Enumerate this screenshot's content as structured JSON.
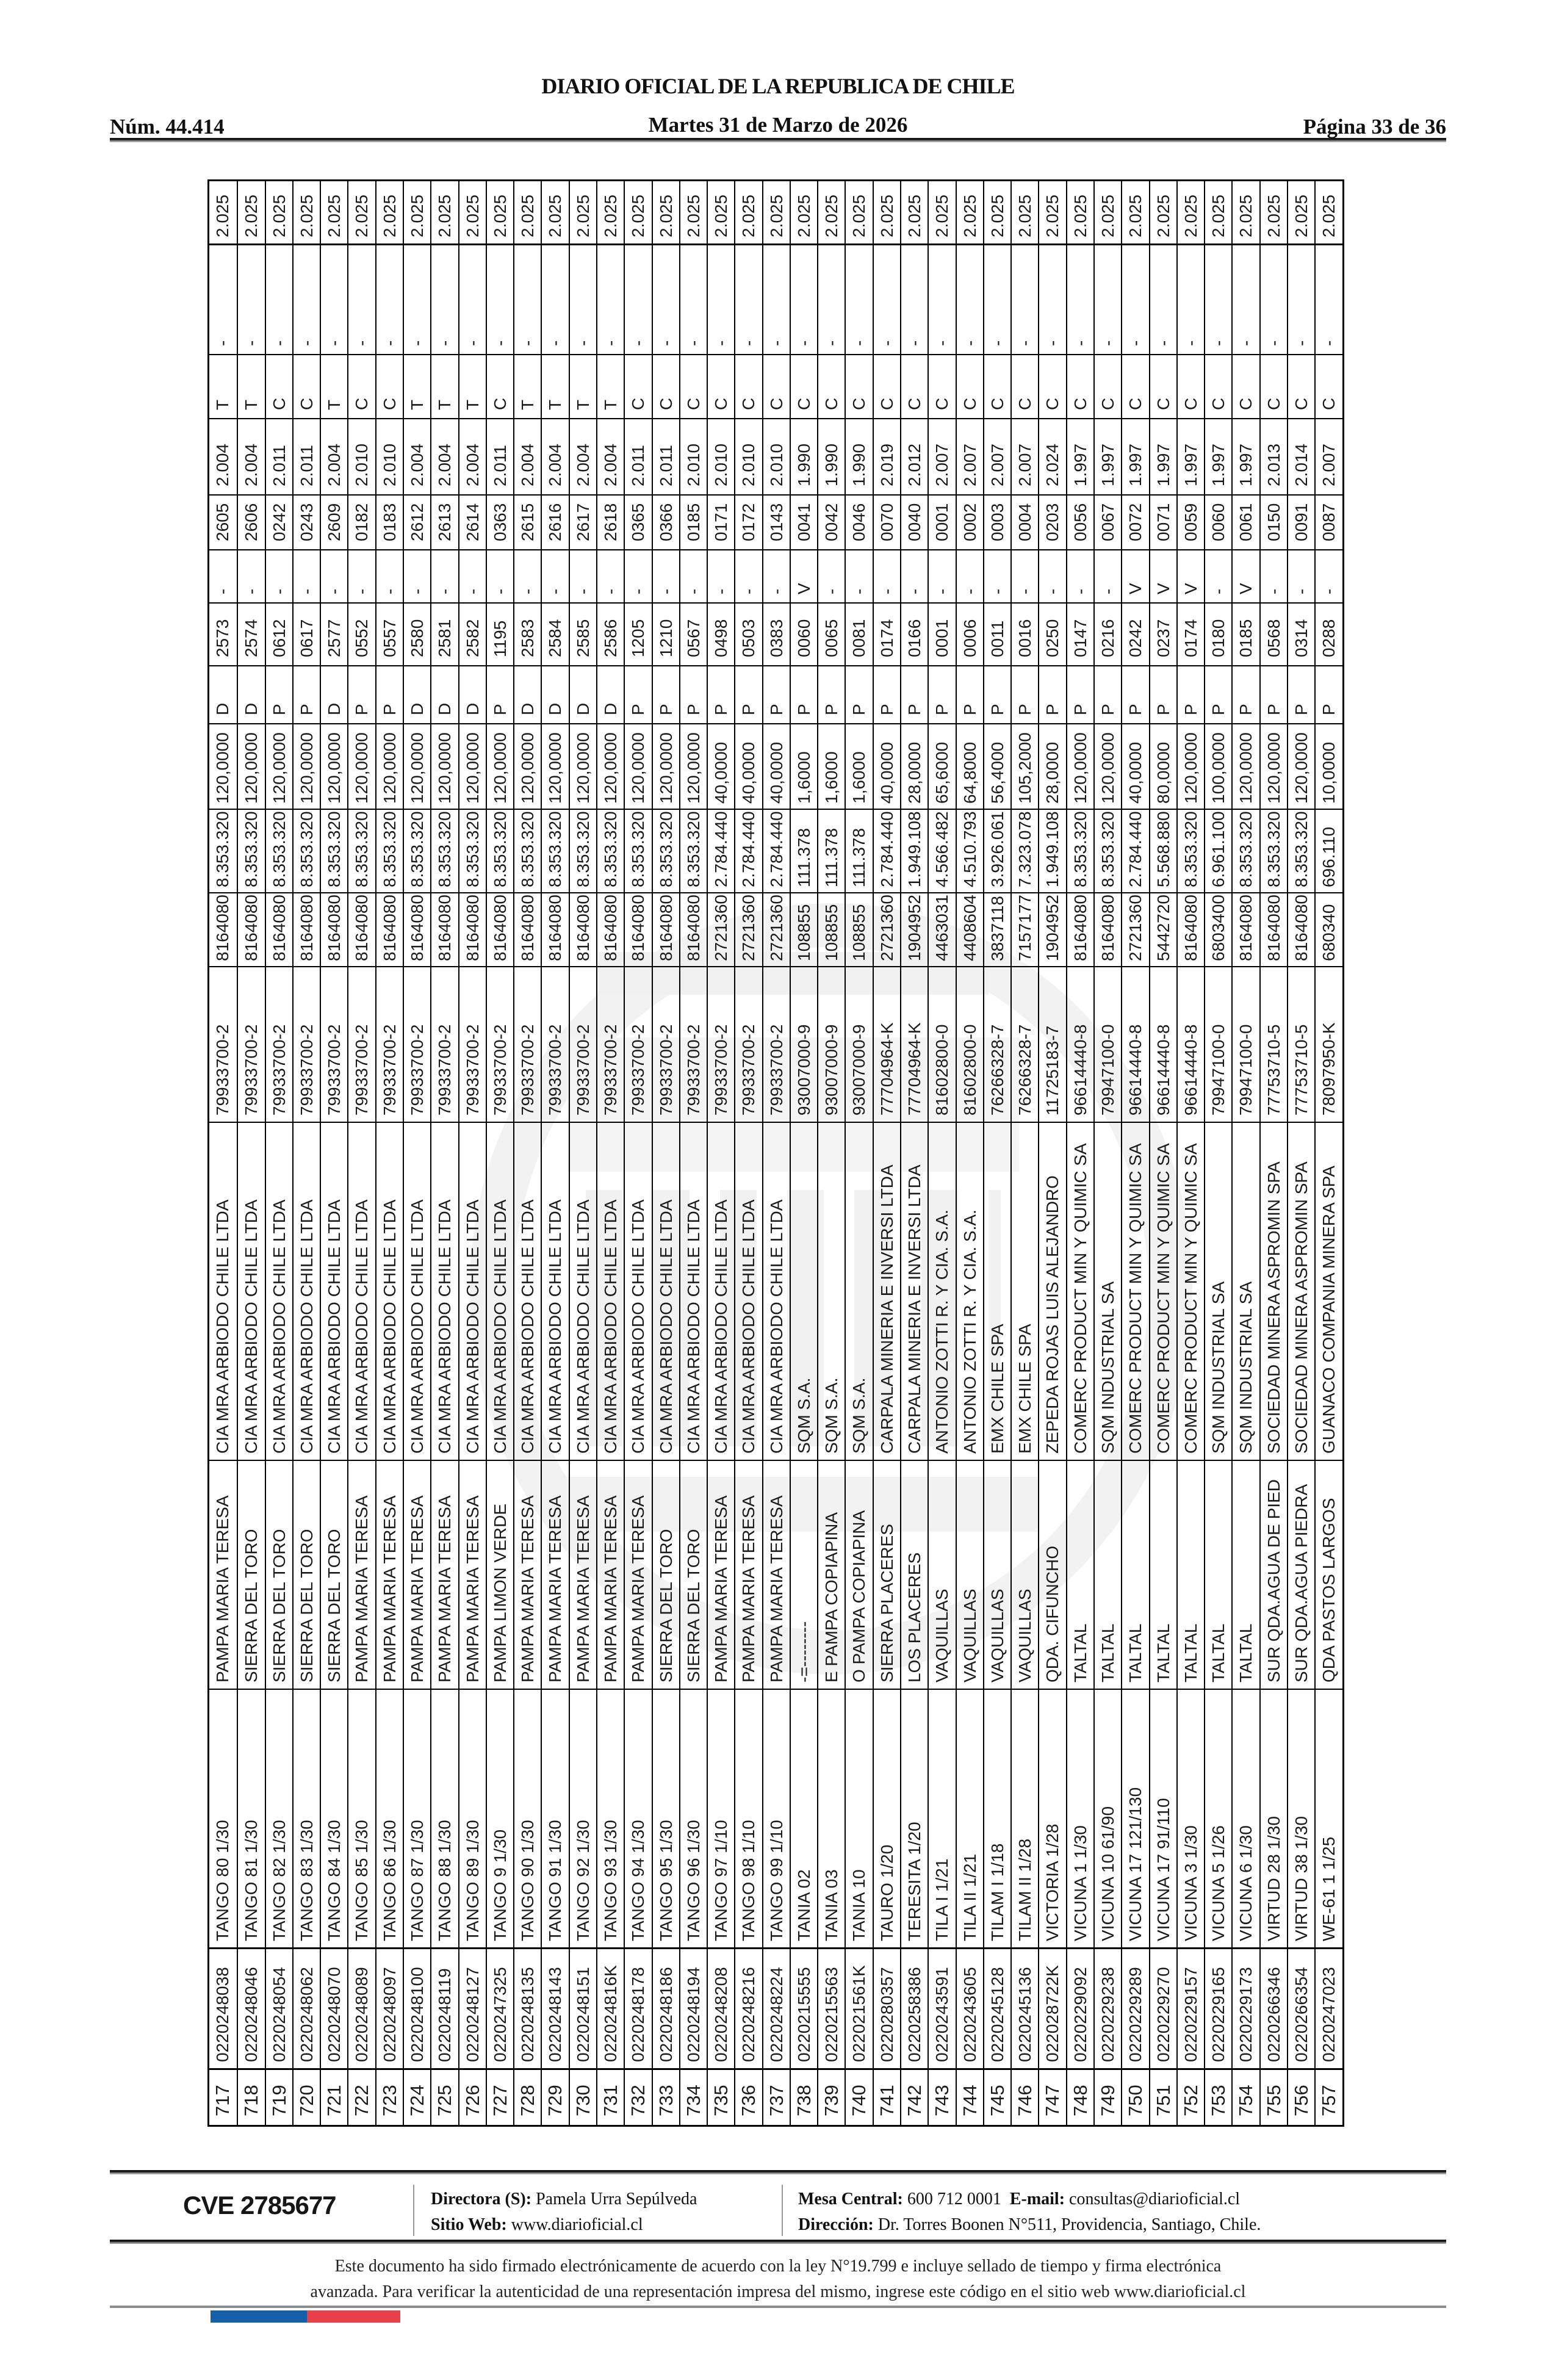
{
  "page": {
    "num_label": "Núm. 44.414",
    "title": "DIARIO OFICIAL DE LA REPUBLICA DE CHILE",
    "date": "Martes 31 de Marzo de 2026",
    "page_label": "Página 33 de 36"
  },
  "table": {
    "columns": [
      "row_number",
      "roll_id",
      "claim_name",
      "location",
      "owner",
      "rut",
      "value1",
      "value2",
      "hectares",
      "status",
      "folio_a",
      "mark_a",
      "folio_b",
      "year_a",
      "letter",
      "mark_b",
      "year_b"
    ],
    "rows": [
      [
        "717",
        "0220248038",
        "TANGO 80 1/30",
        "PAMPA MARIA TERESA",
        "CIA MRA ARBIODO CHILE LTDA",
        "79933700-2",
        "8164080",
        "8.353.320",
        "120,0000",
        "D",
        "2573",
        "-",
        "2605",
        "2.004",
        "T",
        "-",
        "2.025"
      ],
      [
        "718",
        "0220248046",
        "TANGO 81 1/30",
        "SIERRA DEL TORO",
        "CIA MRA ARBIODO CHILE LTDA",
        "79933700-2",
        "8164080",
        "8.353.320",
        "120,0000",
        "D",
        "2574",
        "-",
        "2606",
        "2.004",
        "T",
        "-",
        "2.025"
      ],
      [
        "719",
        "0220248054",
        "TANGO 82 1/30",
        "SIERRA DEL TORO",
        "CIA MRA ARBIODO CHILE LTDA",
        "79933700-2",
        "8164080",
        "8.353.320",
        "120,0000",
        "P",
        "0612",
        "-",
        "0242",
        "2.011",
        "C",
        "-",
        "2.025"
      ],
      [
        "720",
        "0220248062",
        "TANGO 83 1/30",
        "SIERRA DEL TORO",
        "CIA MRA ARBIODO CHILE LTDA",
        "79933700-2",
        "8164080",
        "8.353.320",
        "120,0000",
        "P",
        "0617",
        "-",
        "0243",
        "2.011",
        "C",
        "-",
        "2.025"
      ],
      [
        "721",
        "0220248070",
        "TANGO 84 1/30",
        "SIERRA DEL TORO",
        "CIA MRA ARBIODO CHILE LTDA",
        "79933700-2",
        "8164080",
        "8.353.320",
        "120,0000",
        "D",
        "2577",
        "-",
        "2609",
        "2.004",
        "T",
        "-",
        "2.025"
      ],
      [
        "722",
        "0220248089",
        "TANGO 85 1/30",
        "PAMPA MARIA TERESA",
        "CIA MRA ARBIODO CHILE LTDA",
        "79933700-2",
        "8164080",
        "8.353.320",
        "120,0000",
        "P",
        "0552",
        "-",
        "0182",
        "2.010",
        "C",
        "-",
        "2.025"
      ],
      [
        "723",
        "0220248097",
        "TANGO 86 1/30",
        "PAMPA MARIA TERESA",
        "CIA MRA ARBIODO CHILE LTDA",
        "79933700-2",
        "8164080",
        "8.353.320",
        "120,0000",
        "P",
        "0557",
        "-",
        "0183",
        "2.010",
        "C",
        "-",
        "2.025"
      ],
      [
        "724",
        "0220248100",
        "TANGO 87 1/30",
        "PAMPA MARIA TERESA",
        "CIA MRA ARBIODO CHILE LTDA",
        "79933700-2",
        "8164080",
        "8.353.320",
        "120,0000",
        "D",
        "2580",
        "-",
        "2612",
        "2.004",
        "T",
        "-",
        "2.025"
      ],
      [
        "725",
        "0220248119",
        "TANGO 88 1/30",
        "PAMPA MARIA TERESA",
        "CIA MRA ARBIODO CHILE LTDA",
        "79933700-2",
        "8164080",
        "8.353.320",
        "120,0000",
        "D",
        "2581",
        "-",
        "2613",
        "2.004",
        "T",
        "-",
        "2.025"
      ],
      [
        "726",
        "0220248127",
        "TANGO 89 1/30",
        "PAMPA MARIA TERESA",
        "CIA MRA ARBIODO CHILE LTDA",
        "79933700-2",
        "8164080",
        "8.353.320",
        "120,0000",
        "D",
        "2582",
        "-",
        "2614",
        "2.004",
        "T",
        "-",
        "2.025"
      ],
      [
        "727",
        "0220247325",
        "TANGO 9 1/30",
        "PAMPA LIMON VERDE",
        "CIA MRA ARBIODO CHILE LTDA",
        "79933700-2",
        "8164080",
        "8.353.320",
        "120,0000",
        "P",
        "1195",
        "-",
        "0363",
        "2.011",
        "C",
        "-",
        "2.025"
      ],
      [
        "728",
        "0220248135",
        "TANGO 90 1/30",
        "PAMPA MARIA TERESA",
        "CIA MRA ARBIODO CHILE LTDA",
        "79933700-2",
        "8164080",
        "8.353.320",
        "120,0000",
        "D",
        "2583",
        "-",
        "2615",
        "2.004",
        "T",
        "-",
        "2.025"
      ],
      [
        "729",
        "0220248143",
        "TANGO 91 1/30",
        "PAMPA MARIA TERESA",
        "CIA MRA ARBIODO CHILE LTDA",
        "79933700-2",
        "8164080",
        "8.353.320",
        "120,0000",
        "D",
        "2584",
        "-",
        "2616",
        "2.004",
        "T",
        "-",
        "2.025"
      ],
      [
        "730",
        "0220248151",
        "TANGO 92 1/30",
        "PAMPA MARIA TERESA",
        "CIA MRA ARBIODO CHILE LTDA",
        "79933700-2",
        "8164080",
        "8.353.320",
        "120,0000",
        "D",
        "2585",
        "-",
        "2617",
        "2.004",
        "T",
        "-",
        "2.025"
      ],
      [
        "731",
        "022024816K",
        "TANGO 93 1/30",
        "PAMPA MARIA TERESA",
        "CIA MRA ARBIODO CHILE LTDA",
        "79933700-2",
        "8164080",
        "8.353.320",
        "120,0000",
        "D",
        "2586",
        "-",
        "2618",
        "2.004",
        "T",
        "-",
        "2.025"
      ],
      [
        "732",
        "0220248178",
        "TANGO 94 1/30",
        "PAMPA MARIA TERESA",
        "CIA MRA ARBIODO CHILE LTDA",
        "79933700-2",
        "8164080",
        "8.353.320",
        "120,0000",
        "P",
        "1205",
        "-",
        "0365",
        "2.011",
        "C",
        "-",
        "2.025"
      ],
      [
        "733",
        "0220248186",
        "TANGO 95 1/30",
        "SIERRA DEL TORO",
        "CIA MRA ARBIODO CHILE LTDA",
        "79933700-2",
        "8164080",
        "8.353.320",
        "120,0000",
        "P",
        "1210",
        "-",
        "0366",
        "2.011",
        "C",
        "-",
        "2.025"
      ],
      [
        "734",
        "0220248194",
        "TANGO 96 1/30",
        "SIERRA DEL TORO",
        "CIA MRA ARBIODO CHILE LTDA",
        "79933700-2",
        "8164080",
        "8.353.320",
        "120,0000",
        "P",
        "0567",
        "-",
        "0185",
        "2.010",
        "C",
        "-",
        "2.025"
      ],
      [
        "735",
        "0220248208",
        "TANGO 97 1/10",
        "PAMPA MARIA TERESA",
        "CIA MRA ARBIODO CHILE LTDA",
        "79933700-2",
        "2721360",
        "2.784.440",
        "40,0000",
        "P",
        "0498",
        "-",
        "0171",
        "2.010",
        "C",
        "-",
        "2.025"
      ],
      [
        "736",
        "0220248216",
        "TANGO 98 1/10",
        "PAMPA MARIA TERESA",
        "CIA MRA ARBIODO CHILE LTDA",
        "79933700-2",
        "2721360",
        "2.784.440",
        "40,0000",
        "P",
        "0503",
        "-",
        "0172",
        "2.010",
        "C",
        "-",
        "2.025"
      ],
      [
        "737",
        "0220248224",
        "TANGO 99 1/10",
        "PAMPA MARIA TERESA",
        "CIA MRA ARBIODO CHILE LTDA",
        "79933700-2",
        "2721360",
        "2.784.440",
        "40,0000",
        "P",
        "0383",
        "-",
        "0143",
        "2.010",
        "C",
        "-",
        "2.025"
      ],
      [
        "738",
        "0220215555",
        "TANIA 02",
        "-=--------",
        "SQM S.A.",
        "93007000-9",
        "108855",
        "111.378",
        "1,6000",
        "P",
        "0060",
        "V",
        "0041",
        "1.990",
        "C",
        "-",
        "2.025"
      ],
      [
        "739",
        "0220215563",
        "TANIA 03",
        "E PAMPA COPIAPINA",
        "SQM S.A.",
        "93007000-9",
        "108855",
        "111.378",
        "1,6000",
        "P",
        "0065",
        "-",
        "0042",
        "1.990",
        "C",
        "-",
        "2.025"
      ],
      [
        "740",
        "022021561K",
        "TANIA 10",
        "O PAMPA COPIAPINA",
        "SQM S.A.",
        "93007000-9",
        "108855",
        "111.378",
        "1,6000",
        "P",
        "0081",
        "-",
        "0046",
        "1.990",
        "C",
        "-",
        "2.025"
      ],
      [
        "741",
        "0220280357",
        "TAURO 1/20",
        "SIERRA PLACERES",
        "CARPALA MINERIA E INVERSI LTDA",
        "77704964-K",
        "2721360",
        "2.784.440",
        "40,0000",
        "P",
        "0174",
        "-",
        "0070",
        "2.019",
        "C",
        "-",
        "2.025"
      ],
      [
        "742",
        "0220258386",
        "TERESITA 1/20",
        "LOS PLACERES",
        "CARPALA MINERIA E INVERSI LTDA",
        "77704964-K",
        "1904952",
        "1.949.108",
        "28,0000",
        "P",
        "0166",
        "-",
        "0040",
        "2.012",
        "C",
        "-",
        "2.025"
      ],
      [
        "743",
        "0220243591",
        "TILA I 1/21",
        "VAQUILLAS",
        "ANTONIO ZOTTI R. Y CIA. S.A.",
        "81602800-0",
        "4463031",
        "4.566.482",
        "65,6000",
        "P",
        "0001",
        "-",
        "0001",
        "2.007",
        "C",
        "-",
        "2.025"
      ],
      [
        "744",
        "0220243605",
        "TILA II 1/21",
        "VAQUILLAS",
        "ANTONIO ZOTTI R. Y CIA. S.A.",
        "81602800-0",
        "4408604",
        "4.510.793",
        "64,8000",
        "P",
        "0006",
        "-",
        "0002",
        "2.007",
        "C",
        "-",
        "2.025"
      ],
      [
        "745",
        "0220245128",
        "TILAM I 1/18",
        "VAQUILLAS",
        "EMX CHILE SPA",
        "76266328-7",
        "3837118",
        "3.926.061",
        "56,4000",
        "P",
        "0011",
        "-",
        "0003",
        "2.007",
        "C",
        "-",
        "2.025"
      ],
      [
        "746",
        "0220245136",
        "TILAM II 1/28",
        "VAQUILLAS",
        "EMX CHILE SPA",
        "76266328-7",
        "7157177",
        "7.323.078",
        "105,2000",
        "P",
        "0016",
        "-",
        "0004",
        "2.007",
        "C",
        "-",
        "2.025"
      ],
      [
        "747",
        "022028722K",
        "VICTORIA 1/28",
        "QDA. CIFUNCHO",
        "ZEPEDA ROJAS LUIS ALEJANDRO",
        "11725183-7",
        "1904952",
        "1.949.108",
        "28,0000",
        "P",
        "0250",
        "-",
        "0203",
        "2.024",
        "C",
        "-",
        "2.025"
      ],
      [
        "748",
        "0220229092",
        "VICUNA 1 1/30",
        "TALTAL",
        "COMERC PRODUCT MIN Y QUIMIC SA",
        "96614440-8",
        "8164080",
        "8.353.320",
        "120,0000",
        "P",
        "0147",
        "-",
        "0056",
        "1.997",
        "C",
        "-",
        "2.025"
      ],
      [
        "749",
        "0220229238",
        "VICUNA 10 61/90",
        "TALTAL",
        "SQM INDUSTRIAL SA",
        "79947100-0",
        "8164080",
        "8.353.320",
        "120,0000",
        "P",
        "0216",
        "-",
        "0067",
        "1.997",
        "C",
        "-",
        "2.025"
      ],
      [
        "750",
        "0220229289",
        "VICUNA 17 121/130",
        "TALTAL",
        "COMERC PRODUCT MIN Y QUIMIC SA",
        "96614440-8",
        "2721360",
        "2.784.440",
        "40,0000",
        "P",
        "0242",
        "V",
        "0072",
        "1.997",
        "C",
        "-",
        "2.025"
      ],
      [
        "751",
        "0220229270",
        "VICUNA 17 91/110",
        "TALTAL",
        "COMERC PRODUCT MIN Y QUIMIC SA",
        "96614440-8",
        "5442720",
        "5.568.880",
        "80,0000",
        "P",
        "0237",
        "V",
        "0071",
        "1.997",
        "C",
        "-",
        "2.025"
      ],
      [
        "752",
        "0220229157",
        "VICUNA 3 1/30",
        "TALTAL",
        "COMERC PRODUCT MIN Y QUIMIC SA",
        "96614440-8",
        "8164080",
        "8.353.320",
        "120,0000",
        "P",
        "0174",
        "V",
        "0059",
        "1.997",
        "C",
        "-",
        "2.025"
      ],
      [
        "753",
        "0220229165",
        "VICUNA 5 1/26",
        "TALTAL",
        "SQM INDUSTRIAL SA",
        "79947100-0",
        "6803400",
        "6.961.100",
        "100,0000",
        "P",
        "0180",
        "-",
        "0060",
        "1.997",
        "C",
        "-",
        "2.025"
      ],
      [
        "754",
        "0220229173",
        "VICUNA 6 1/30",
        "TALTAL",
        "SQM INDUSTRIAL SA",
        "79947100-0",
        "8164080",
        "8.353.320",
        "120,0000",
        "P",
        "0185",
        "V",
        "0061",
        "1.997",
        "C",
        "-",
        "2.025"
      ],
      [
        "755",
        "0220266346",
        "VIRTUD 28 1/30",
        "SUR QDA.AGUA DE PIED",
        "SOCIEDAD MINERA ASPROMIN SPA",
        "77753710-5",
        "8164080",
        "8.353.320",
        "120,0000",
        "P",
        "0568",
        "-",
        "0150",
        "2.013",
        "C",
        "-",
        "2.025"
      ],
      [
        "756",
        "0220266354",
        "VIRTUD 38 1/30",
        "SUR QDA.AGUA PIEDRA",
        "SOCIEDAD MINERA ASPROMIN SPA",
        "77753710-5",
        "8164080",
        "8.353.320",
        "120,0000",
        "P",
        "0314",
        "-",
        "0091",
        "2.014",
        "C",
        "-",
        "2.025"
      ],
      [
        "757",
        "0220247023",
        "WE-61 1 1/25",
        "QDA PASTOS LARGOS",
        "GUANACO COMPANIA MINERA SPA",
        "78097950-K",
        "680340",
        "696.110",
        "10,0000",
        "P",
        "0288",
        "-",
        "0087",
        "2.007",
        "C",
        "-",
        "2.025"
      ]
    ]
  },
  "footer": {
    "cve": "CVE 2785677",
    "director_label": "Directora (S):",
    "director": "Pamela Urra Sepúlveda",
    "site_label": "Sitio Web:",
    "site": "www.diarioficial.cl",
    "phone_label": "Mesa Central:",
    "phone": "600 712 0001",
    "email_label": "E-mail:",
    "email": "consultas@diarioficial.cl",
    "address_label": "Dirección:",
    "address": "Dr. Torres Boonen N°511, Providencia, Santiago, Chile.",
    "legal_line1": "Este documento ha sido firmado electrónicamente de acuerdo con la ley N°19.799 e incluye sellado de tiempo y firma electrónica",
    "legal_line2": "avanzada. Para verificar la autenticidad de una representación impresa del mismo, ingrese este código en el sitio web www.diarioficial.cl",
    "flag_blue": "#1560a8",
    "flag_red": "#e8404a"
  }
}
